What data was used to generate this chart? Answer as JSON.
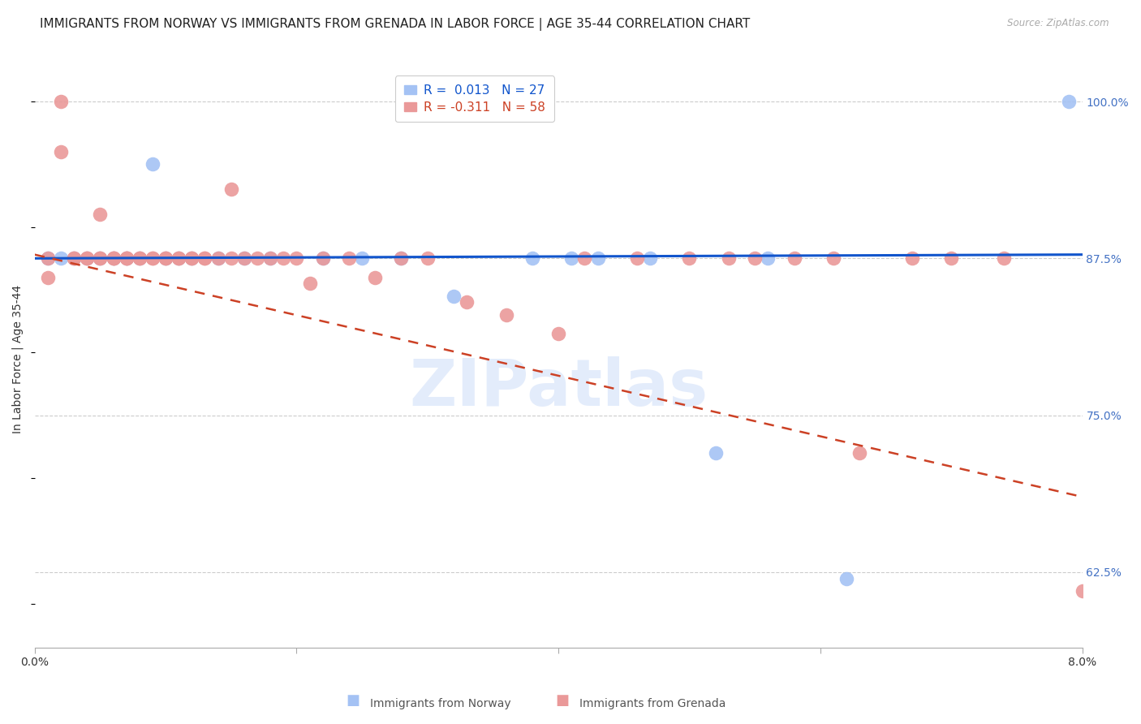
{
  "title": "IMMIGRANTS FROM NORWAY VS IMMIGRANTS FROM GRENADA IN LABOR FORCE | AGE 35-44 CORRELATION CHART",
  "source": "Source: ZipAtlas.com",
  "ylabel": "In Labor Force | Age 35-44",
  "yticks": [
    0.625,
    0.75,
    0.875,
    1.0
  ],
  "ytick_labels": [
    "62.5%",
    "75.0%",
    "87.5%",
    "100.0%"
  ],
  "xmin": 0.0,
  "xmax": 0.08,
  "ymin": 0.565,
  "ymax": 1.025,
  "norway_color": "#a4c2f4",
  "grenada_color": "#ea9999",
  "norway_R": 0.013,
  "norway_N": 27,
  "grenada_R": -0.311,
  "grenada_N": 58,
  "norway_scatter_x": [
    0.001,
    0.002,
    0.003,
    0.004,
    0.005,
    0.006,
    0.007,
    0.008,
    0.009,
    0.01,
    0.011,
    0.012,
    0.014,
    0.016,
    0.018,
    0.022,
    0.025,
    0.028,
    0.032,
    0.038,
    0.041,
    0.043,
    0.047,
    0.052,
    0.056,
    0.062,
    0.079
  ],
  "norway_scatter_y": [
    0.875,
    0.875,
    0.875,
    0.875,
    0.875,
    0.875,
    0.875,
    0.875,
    0.95,
    0.875,
    0.875,
    0.875,
    0.875,
    0.875,
    0.875,
    0.875,
    0.875,
    0.875,
    0.845,
    0.875,
    0.875,
    0.875,
    0.875,
    0.72,
    0.875,
    0.62,
    1.0
  ],
  "grenada_scatter_x": [
    0.001,
    0.001,
    0.002,
    0.002,
    0.003,
    0.003,
    0.004,
    0.004,
    0.005,
    0.005,
    0.005,
    0.006,
    0.006,
    0.006,
    0.007,
    0.007,
    0.007,
    0.008,
    0.008,
    0.009,
    0.009,
    0.01,
    0.01,
    0.011,
    0.011,
    0.012,
    0.012,
    0.013,
    0.013,
    0.014,
    0.015,
    0.015,
    0.016,
    0.017,
    0.018,
    0.019,
    0.02,
    0.021,
    0.022,
    0.024,
    0.026,
    0.028,
    0.03,
    0.033,
    0.036,
    0.04,
    0.042,
    0.046,
    0.05,
    0.053,
    0.055,
    0.058,
    0.061,
    0.063,
    0.067,
    0.07,
    0.074,
    0.08
  ],
  "grenada_scatter_y": [
    0.875,
    0.86,
    1.0,
    0.96,
    0.875,
    0.875,
    0.875,
    0.875,
    0.875,
    0.875,
    0.91,
    0.875,
    0.875,
    0.875,
    0.875,
    0.875,
    0.875,
    0.875,
    0.875,
    0.875,
    0.875,
    0.875,
    0.875,
    0.875,
    0.875,
    0.875,
    0.875,
    0.875,
    0.875,
    0.875,
    0.93,
    0.875,
    0.875,
    0.875,
    0.875,
    0.875,
    0.875,
    0.855,
    0.875,
    0.875,
    0.86,
    0.875,
    0.875,
    0.84,
    0.83,
    0.815,
    0.875,
    0.875,
    0.875,
    0.875,
    0.875,
    0.875,
    0.875,
    0.72,
    0.875,
    0.875,
    0.875,
    0.61
  ],
  "norway_line_color": "#1155cc",
  "grenada_line_color": "#cc4125",
  "norway_line_y0": 0.875,
  "norway_line_y1": 0.878,
  "grenada_line_y0": 0.878,
  "grenada_line_y1": 0.685,
  "background_color": "#ffffff",
  "watermark_text": "ZIPatlas",
  "legend_norway_label": "Immigrants from Norway",
  "legend_grenada_label": "Immigrants from Grenada",
  "title_fontsize": 11,
  "axis_label_fontsize": 10,
  "tick_fontsize": 10,
  "legend_fontsize": 11,
  "right_tick_color": "#4472c4"
}
